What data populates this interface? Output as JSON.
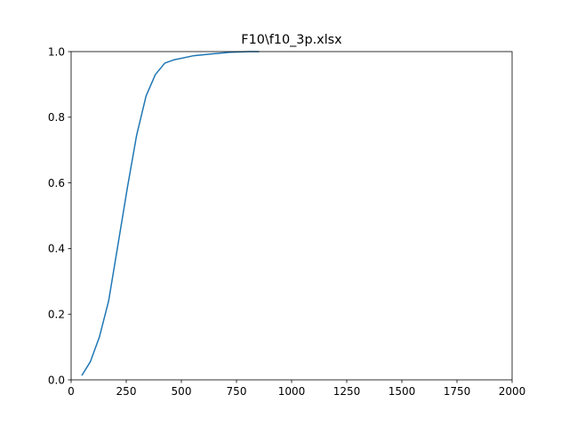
{
  "chart_data": {
    "type": "line",
    "title": "F10\\f10_3p.xlsx",
    "xlabel": "",
    "ylabel": "",
    "xlim": [
      0,
      2000
    ],
    "ylim": [
      0,
      1.0
    ],
    "x_ticks": [
      0,
      250,
      500,
      750,
      1000,
      1250,
      1500,
      1750,
      2000
    ],
    "x_tick_labels": [
      "0",
      "250",
      "500",
      "750",
      "1000",
      "1250",
      "1500",
      "1750",
      "2000"
    ],
    "y_ticks": [
      0.0,
      0.2,
      0.4,
      0.6,
      0.8,
      1.0
    ],
    "y_tick_labels": [
      "0.0",
      "0.2",
      "0.4",
      "0.6",
      "0.8",
      "1.0"
    ],
    "grid": false,
    "series": [
      {
        "color": "#1f77b4",
        "x": [
          50,
          87,
          128,
          170,
          212,
          255,
          297,
          340,
          382,
          425,
          467,
          552,
          637,
          722,
          808,
          850
        ],
        "y": [
          0.015,
          0.055,
          0.13,
          0.24,
          0.41,
          0.585,
          0.745,
          0.865,
          0.93,
          0.965,
          0.975,
          0.987,
          0.993,
          0.998,
          1.0,
          1.0
        ]
      }
    ]
  }
}
